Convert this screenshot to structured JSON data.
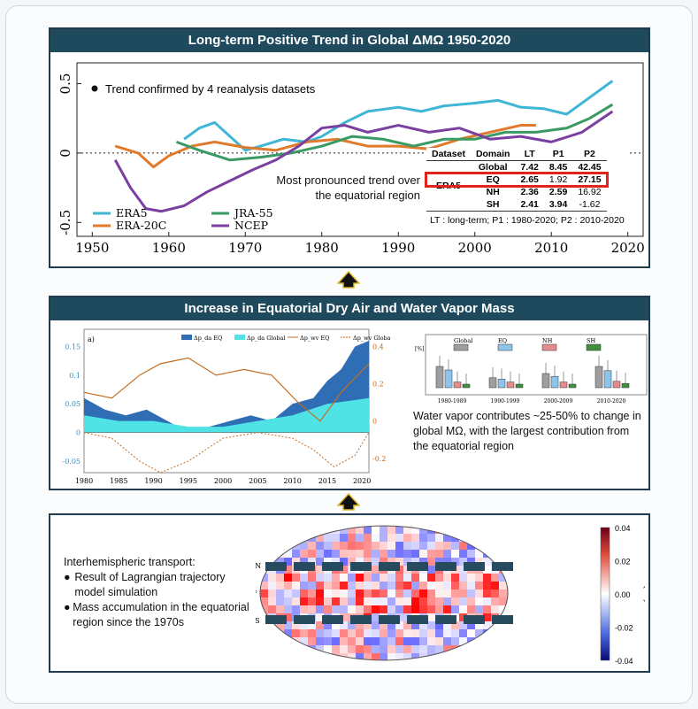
{
  "panel1": {
    "title": "Long-term Positive Trend in Global ΔMΩ 1950-2020",
    "bullet": "Trend confirmed by 4 reanalysis datasets",
    "annotation_line1": "Most pronounced trend over",
    "annotation_line2": "the equatorial region",
    "legend": [
      "ERA5",
      "JRA-55",
      "ERA-20C",
      "NCEP"
    ],
    "colors": {
      "ERA5": "#3fb6d6",
      "JRA-55": "#3a9a63",
      "ERA-20C": "#e07a2c",
      "NCEP": "#7a3fa0"
    },
    "table": {
      "headers": [
        "Dataset",
        "Domain",
        "LT",
        "P1",
        "P2"
      ],
      "dataset": "ERA5",
      "rows": [
        {
          "domain": "Global",
          "lt": "7.42",
          "p1": "8.45",
          "p2": "42.45"
        },
        {
          "domain": "EQ",
          "lt": "2.65",
          "p1": "1.92",
          "p2": "27.15"
        },
        {
          "domain": "NH",
          "lt": "2.36",
          "p1": "2.59",
          "p2": "16.92"
        },
        {
          "domain": "SH",
          "lt": "2.41",
          "p1": "3.94",
          "p2": "-1.62"
        }
      ],
      "footnote": "LT : long-term; P1 : 1980-2020; P2 : 2010-2020"
    }
  },
  "panel2": {
    "title": "Increase in Equatorial Dry Air and Water Vapor Mass",
    "text": "Water vapor contributes ~25-50% to change in global MΩ, with the largest contribution from the equatorial region",
    "legend": [
      "Δp_da EQ",
      "Δp_da Global",
      "Δp_wv EQ",
      "Δp_wv Global"
    ],
    "box_legend": [
      "Global",
      "EQ",
      "NH",
      "SH"
    ],
    "box_periods": [
      "1980-1989",
      "1990-1999",
      "2000-2009",
      "2010-2020"
    ]
  },
  "panel3": {
    "heading": "Interhemispheric transport:",
    "bullets": [
      "Result of Lagrangian trajectory model simulation",
      "Mass accumulation in the equatorial region since the 1970s"
    ],
    "colorbar_ticks": [
      "0.04",
      "0.02",
      "0.00",
      "-0.02",
      "-0.04"
    ],
    "colorbar_label": "(%)",
    "lat_labels": [
      "20°N",
      "0°",
      "20°S"
    ]
  },
  "chart_data": [
    {
      "type": "line",
      "title": "Long-term Positive Trend in Global ΔMΩ 1950-2020",
      "xlim": [
        1948,
        2022
      ],
      "ylim": [
        -0.6,
        0.65
      ],
      "xticks": [
        1950,
        1960,
        1970,
        1980,
        1990,
        2000,
        2010,
        2020
      ],
      "yticks": [
        0.5,
        0,
        -0.5
      ],
      "series": [
        {
          "name": "ERA5",
          "x": [
            1962,
            1964,
            1966,
            1968,
            1970,
            1972,
            1975,
            1978,
            1980,
            1983,
            1986,
            1990,
            1993,
            1996,
            2000,
            2003,
            2006,
            2009,
            2012,
            2015,
            2018
          ],
          "values": [
            0.1,
            0.18,
            0.22,
            0.12,
            0.02,
            0.05,
            0.1,
            0.08,
            0.12,
            0.22,
            0.3,
            0.33,
            0.3,
            0.34,
            0.36,
            0.38,
            0.33,
            0.32,
            0.28,
            0.4,
            0.52
          ]
        },
        {
          "name": "ERA-20C",
          "x": [
            1953,
            1956,
            1958,
            1960,
            1963,
            1966,
            1970,
            1974,
            1978,
            1982,
            1986,
            1990,
            1994,
            1998,
            2002,
            2006,
            2008
          ],
          "values": [
            0.05,
            0.0,
            -0.1,
            -0.02,
            0.05,
            0.08,
            0.04,
            0.02,
            0.08,
            0.1,
            0.05,
            0.05,
            0.03,
            0.1,
            0.15,
            0.2,
            0.2
          ]
        },
        {
          "name": "JRA-55",
          "x": [
            1961,
            1964,
            1968,
            1972,
            1976,
            1980,
            1984,
            1988,
            1992,
            1996,
            2000,
            2004,
            2008,
            2012,
            2015,
            2018
          ],
          "values": [
            0.08,
            0.02,
            -0.05,
            -0.03,
            0.0,
            0.05,
            0.12,
            0.1,
            0.05,
            0.1,
            0.1,
            0.15,
            0.15,
            0.18,
            0.25,
            0.35
          ]
        },
        {
          "name": "NCEP",
          "x": [
            1953,
            1955,
            1957,
            1959,
            1962,
            1965,
            1968,
            1971,
            1974,
            1977,
            1980,
            1983,
            1986,
            1990,
            1994,
            1998,
            2002,
            2006,
            2010,
            2014,
            2018
          ],
          "values": [
            -0.05,
            -0.25,
            -0.4,
            -0.42,
            -0.38,
            -0.28,
            -0.2,
            -0.12,
            -0.05,
            0.05,
            0.18,
            0.2,
            0.15,
            0.2,
            0.15,
            0.18,
            0.1,
            0.12,
            0.08,
            0.15,
            0.3
          ]
        }
      ]
    },
    {
      "type": "area",
      "xlim": [
        1980,
        2021
      ],
      "xticks": [
        1980,
        1985,
        1990,
        1995,
        2000,
        2005,
        2010,
        2015,
        2020
      ],
      "yticks_left": [
        0.15,
        0.1,
        0.05,
        0,
        -0.05
      ],
      "yticks_right": [
        0.4,
        0.2,
        0,
        -0.2
      ],
      "series": [
        {
          "name": "Δp_da EQ",
          "x": [
            1980,
            1983,
            1986,
            1989,
            1992,
            1995,
            1998,
            2001,
            2004,
            2007,
            2010,
            2013,
            2015,
            2017,
            2019,
            2021
          ],
          "values": [
            0.06,
            0.04,
            0.03,
            0.04,
            0.02,
            0.0,
            0.01,
            0.02,
            0.03,
            0.02,
            0.05,
            0.06,
            0.09,
            0.11,
            0.15,
            0.16
          ]
        },
        {
          "name": "Δp_da Global",
          "x": [
            1980,
            1985,
            1990,
            1995,
            2000,
            2005,
            2010,
            2015,
            2021
          ],
          "values": [
            0.03,
            0.02,
            0.02,
            0.01,
            0.01,
            0.02,
            0.03,
            0.05,
            0.06
          ]
        }
      ]
    }
  ]
}
